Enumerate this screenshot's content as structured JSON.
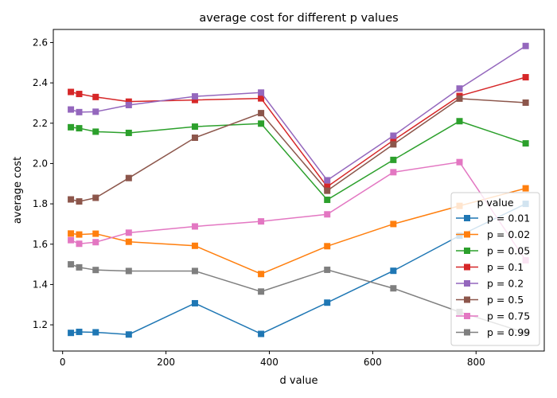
{
  "chart_data": {
    "type": "line",
    "title": "average cost for different p values",
    "xlabel": "d value",
    "ylabel": "average cost",
    "xlim": [
      -18,
      932
    ],
    "ylim": [
      1.07,
      2.665
    ],
    "xticks": [
      0,
      200,
      400,
      600,
      800
    ],
    "yticks": [
      1.2,
      1.4,
      1.6,
      1.8,
      2.0,
      2.2,
      2.4,
      2.6
    ],
    "ytick_labels": [
      "1.2",
      "1.4",
      "1.6",
      "1.8",
      "2.0",
      "2.2",
      "2.4",
      "2.6"
    ],
    "grid": false,
    "legend": {
      "title": "p value",
      "position": "lower-right"
    },
    "x": [
      16,
      32,
      64,
      128,
      256,
      384,
      512,
      640,
      768,
      896
    ],
    "series": [
      {
        "name": "p = 0.01",
        "color": "#1f77b4",
        "values": [
          1.16,
          1.165,
          1.163,
          1.152,
          1.307,
          1.155,
          1.31,
          1.468,
          1.642,
          1.8
        ]
      },
      {
        "name": "p = 0.02",
        "color": "#ff7f0e",
        "values": [
          1.653,
          1.648,
          1.652,
          1.612,
          1.592,
          1.452,
          1.59,
          1.7,
          1.79,
          1.877
        ]
      },
      {
        "name": "p = 0.05",
        "color": "#2ca02c",
        "values": [
          2.18,
          2.175,
          2.158,
          2.152,
          2.183,
          2.198,
          1.82,
          2.018,
          2.21,
          2.1
        ]
      },
      {
        "name": "p = 0.1",
        "color": "#d62728",
        "values": [
          2.355,
          2.345,
          2.33,
          2.307,
          2.315,
          2.323,
          1.885,
          2.115,
          2.335,
          2.428
        ]
      },
      {
        "name": "p = 0.2",
        "color": "#9467bd",
        "values": [
          2.268,
          2.255,
          2.257,
          2.29,
          2.333,
          2.352,
          1.917,
          2.138,
          2.372,
          2.583
        ]
      },
      {
        "name": "p = 0.5",
        "color": "#8c564b",
        "values": [
          1.822,
          1.812,
          1.83,
          1.928,
          2.128,
          2.25,
          1.865,
          2.095,
          2.322,
          2.302
        ]
      },
      {
        "name": "p = 0.75",
        "color": "#e377c2",
        "values": [
          1.62,
          1.602,
          1.61,
          1.657,
          1.688,
          1.713,
          1.748,
          1.957,
          2.007,
          1.52
        ]
      },
      {
        "name": "p = 0.99",
        "color": "#7f7f7f",
        "values": [
          1.5,
          1.485,
          1.472,
          1.467,
          1.467,
          1.365,
          1.473,
          1.381,
          1.264,
          1.16
        ]
      }
    ]
  }
}
